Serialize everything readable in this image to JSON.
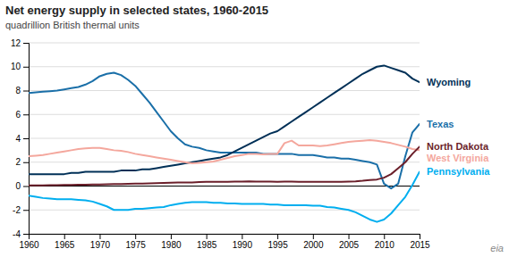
{
  "chart_data": {
    "type": "line",
    "title": "Net energy supply in selected states, 1960-2015",
    "subtitle": "quadrillion British thermal units",
    "annotations": [
      "eia"
    ],
    "x": [
      1960,
      1961,
      1962,
      1963,
      1964,
      1965,
      1966,
      1967,
      1968,
      1969,
      1970,
      1971,
      1972,
      1973,
      1974,
      1975,
      1976,
      1977,
      1978,
      1979,
      1980,
      1981,
      1982,
      1983,
      1984,
      1985,
      1986,
      1987,
      1988,
      1989,
      1990,
      1991,
      1992,
      1993,
      1994,
      1995,
      1996,
      1997,
      1998,
      1999,
      2000,
      2001,
      2002,
      2003,
      2004,
      2005,
      2006,
      2007,
      2008,
      2009,
      2010,
      2011,
      2012,
      2013,
      2014,
      2015
    ],
    "xlim": [
      1960,
      2015
    ],
    "xticks": [
      1960,
      1965,
      1970,
      1975,
      1980,
      1985,
      1990,
      1995,
      2000,
      2005,
      2010,
      2015
    ],
    "ylim": [
      -4,
      12
    ],
    "yticks": [
      -4,
      -2,
      0,
      2,
      4,
      6,
      8,
      10,
      12
    ],
    "grid": true,
    "legend": "right",
    "series": [
      {
        "name": "Texas",
        "color": "#1a6fa8",
        "values": [
          7.8,
          7.85,
          7.9,
          7.95,
          8.0,
          8.1,
          8.2,
          8.3,
          8.5,
          8.8,
          9.2,
          9.4,
          9.5,
          9.3,
          8.9,
          8.4,
          7.7,
          7.0,
          6.2,
          5.4,
          4.6,
          4.0,
          3.5,
          3.3,
          3.2,
          3.0,
          2.9,
          2.8,
          2.8,
          2.8,
          2.8,
          2.8,
          2.8,
          2.7,
          2.7,
          2.7,
          2.7,
          2.7,
          2.6,
          2.6,
          2.6,
          2.5,
          2.4,
          2.4,
          2.3,
          2.3,
          2.2,
          2.1,
          2.0,
          1.8,
          0.2,
          -0.2,
          0.2,
          2.5,
          4.5,
          5.2
        ]
      },
      {
        "name": "Wyoming",
        "color": "#003057",
        "values": [
          1.0,
          1.0,
          1.0,
          1.0,
          1.0,
          1.0,
          1.1,
          1.1,
          1.2,
          1.2,
          1.2,
          1.2,
          1.2,
          1.3,
          1.3,
          1.3,
          1.4,
          1.4,
          1.5,
          1.6,
          1.7,
          1.8,
          1.9,
          2.0,
          2.1,
          2.2,
          2.3,
          2.4,
          2.6,
          2.9,
          3.2,
          3.5,
          3.8,
          4.1,
          4.4,
          4.6,
          5.0,
          5.4,
          5.8,
          6.2,
          6.6,
          7.0,
          7.4,
          7.8,
          8.2,
          8.6,
          9.0,
          9.4,
          9.7,
          10.0,
          10.1,
          9.9,
          9.7,
          9.5,
          9.0,
          8.7
        ]
      },
      {
        "name": "Pennsylvania",
        "color": "#00aeef",
        "values": [
          -0.8,
          -0.9,
          -1.0,
          -1.05,
          -1.1,
          -1.1,
          -1.1,
          -1.15,
          -1.2,
          -1.3,
          -1.5,
          -1.7,
          -2.0,
          -2.0,
          -2.0,
          -1.9,
          -1.9,
          -1.85,
          -1.8,
          -1.75,
          -1.6,
          -1.5,
          -1.4,
          -1.35,
          -1.35,
          -1.35,
          -1.4,
          -1.4,
          -1.45,
          -1.45,
          -1.5,
          -1.5,
          -1.5,
          -1.5,
          -1.55,
          -1.55,
          -1.6,
          -1.6,
          -1.6,
          -1.6,
          -1.65,
          -1.65,
          -1.75,
          -1.8,
          -1.9,
          -2.0,
          -2.2,
          -2.5,
          -2.8,
          -3.0,
          -2.8,
          -2.3,
          -1.6,
          -0.9,
          0.1,
          1.2
        ]
      },
      {
        "name": "West Virginia",
        "color": "#f4a79d",
        "values": [
          2.5,
          2.55,
          2.6,
          2.7,
          2.8,
          2.9,
          3.0,
          3.1,
          3.15,
          3.2,
          3.2,
          3.1,
          3.0,
          2.95,
          2.85,
          2.7,
          2.6,
          2.5,
          2.4,
          2.3,
          2.2,
          2.1,
          2.0,
          1.9,
          1.95,
          2.0,
          2.05,
          2.2,
          2.35,
          2.5,
          2.6,
          2.7,
          2.7,
          2.65,
          2.7,
          2.7,
          3.6,
          3.8,
          3.4,
          3.4,
          3.4,
          3.35,
          3.4,
          3.5,
          3.6,
          3.7,
          3.75,
          3.8,
          3.85,
          3.8,
          3.7,
          3.6,
          3.45,
          3.3,
          3.1,
          3.0
        ]
      },
      {
        "name": "North Dakota",
        "color": "#6b1f2a",
        "values": [
          0.05,
          0.05,
          0.06,
          0.07,
          0.08,
          0.09,
          0.1,
          0.11,
          0.12,
          0.13,
          0.14,
          0.15,
          0.16,
          0.17,
          0.19,
          0.2,
          0.21,
          0.23,
          0.24,
          0.26,
          0.28,
          0.3,
          0.3,
          0.3,
          0.33,
          0.35,
          0.35,
          0.35,
          0.36,
          0.37,
          0.38,
          0.39,
          0.38,
          0.38,
          0.37,
          0.36,
          0.38,
          0.37,
          0.36,
          0.36,
          0.35,
          0.36,
          0.35,
          0.36,
          0.36,
          0.38,
          0.4,
          0.44,
          0.5,
          0.55,
          0.7,
          1.0,
          1.5,
          2.0,
          2.7,
          3.3
        ]
      }
    ]
  }
}
